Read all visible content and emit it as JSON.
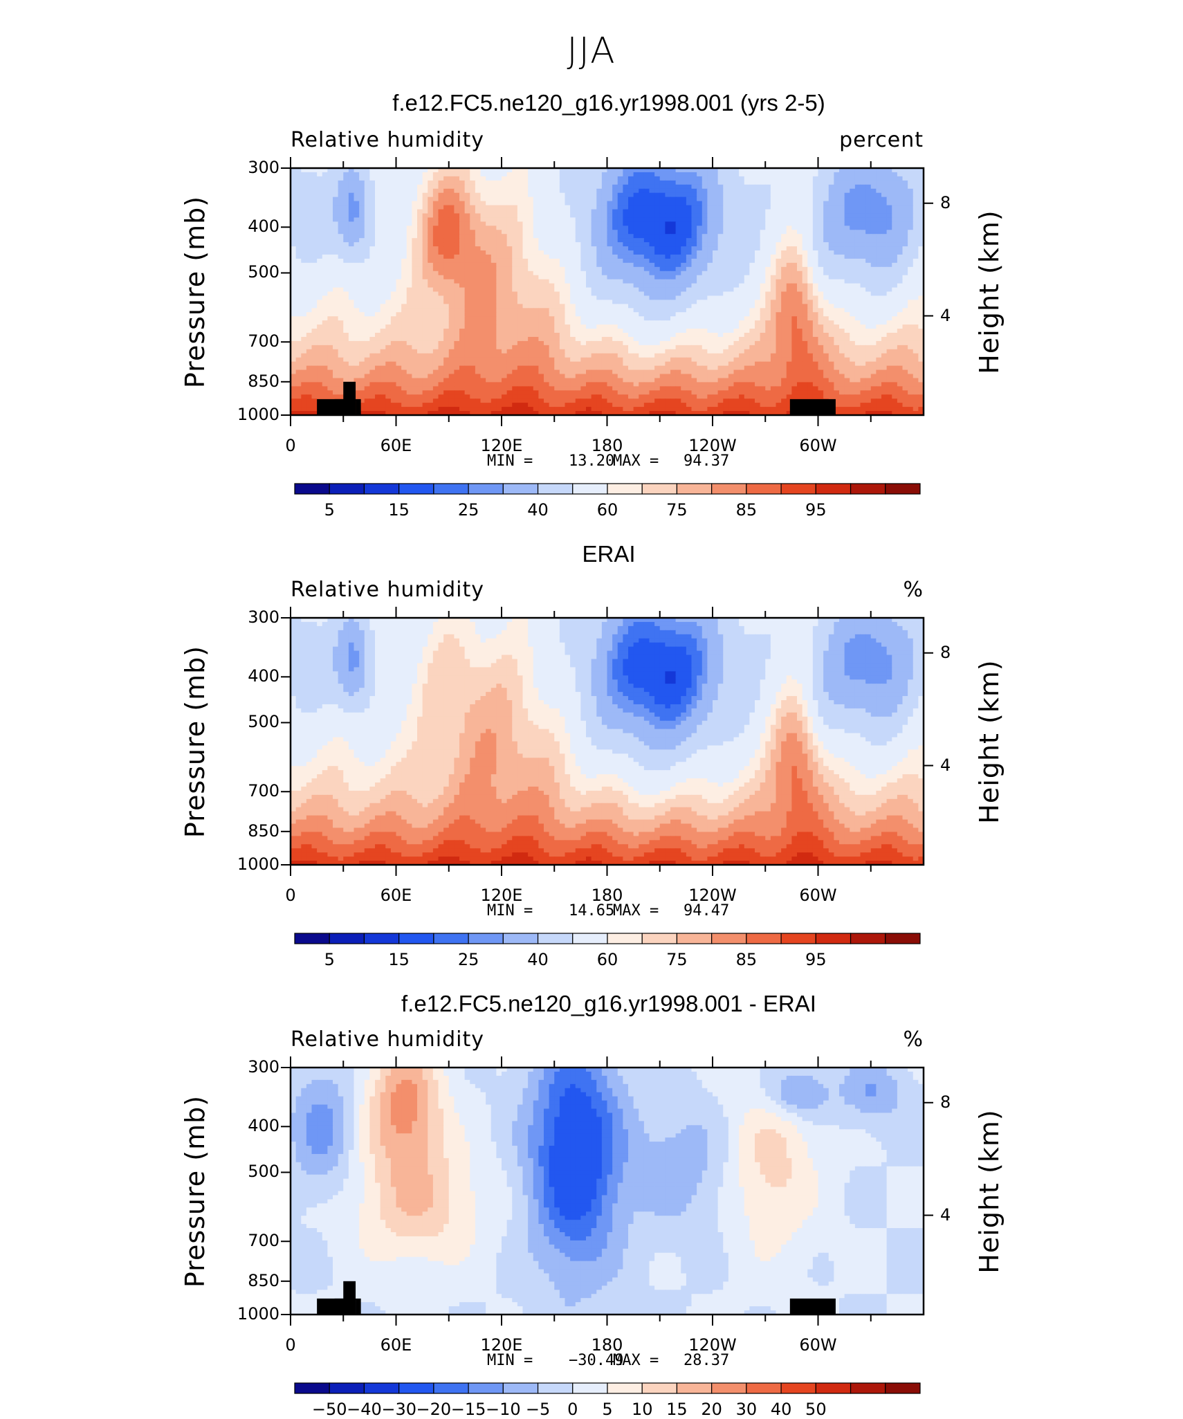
{
  "figure": {
    "title": "JJA"
  },
  "colors": {
    "rh_palette": [
      "#0a0a8c",
      "#0b1fb8",
      "#1438d8",
      "#2257f0",
      "#3f73f2",
      "#6f97f5",
      "#9db9f7",
      "#c6d8fa",
      "#e6eefc",
      "#fdeee3",
      "#fbd4bf",
      "#f8b598",
      "#f38f6c",
      "#ee6a44",
      "#e54520",
      "#d12a10",
      "#ad170a",
      "#8a0d06"
    ],
    "diff_palette": [
      "#0a0a8c",
      "#0b1fb8",
      "#1438d8",
      "#2257f0",
      "#3f73f2",
      "#6f97f5",
      "#9db9f7",
      "#c6d8fa",
      "#e6eefc",
      "#fdeee3",
      "#fbd4bf",
      "#f8b598",
      "#f38f6c",
      "#ee6a44",
      "#e54520",
      "#d12a10",
      "#ad170a",
      "#8a0d06"
    ],
    "topography": "#000000"
  },
  "chart_data": [
    {
      "type": "heatmap",
      "title": "f.e12.FC5.ne120_g16.yr1998.001 (yrs 2-5)",
      "variable": "Relative humidity",
      "units": "percent",
      "ylabel": "Pressure (mb)",
      "ylabel_right": "Height (km)",
      "yticks": [
        "300",
        "400",
        "500",
        "700",
        "850",
        "1000"
      ],
      "yticks_right": [
        "8",
        "4"
      ],
      "xticks": [
        "0",
        "60E",
        "120E",
        "180",
        "120W",
        "60W"
      ],
      "min_label": "MIN =",
      "min": "13.20",
      "max_label": "MAX =",
      "max": "94.37",
      "colorbar_labels": [
        "5",
        "15",
        "25",
        "40",
        "60",
        "75",
        "85",
        "95"
      ],
      "features": [
        {
          "region": "upper troposphere 120W-180",
          "value_range": "10-15"
        },
        {
          "region": "lower troposphere near surface",
          "value_range": "85-90"
        }
      ]
    },
    {
      "type": "heatmap",
      "title": "ERAI",
      "variable": "Relative humidity",
      "units": "%",
      "ylabel": "Pressure (mb)",
      "ylabel_right": "Height (km)",
      "yticks": [
        "300",
        "400",
        "500",
        "700",
        "850",
        "1000"
      ],
      "yticks_right": [
        "8",
        "4"
      ],
      "xticks": [
        "0",
        "60E",
        "120E",
        "180",
        "120W",
        "60W"
      ],
      "min_label": "MIN =",
      "min": "14.65",
      "max_label": "MAX =",
      "max": "94.47",
      "colorbar_labels": [
        "5",
        "15",
        "25",
        "40",
        "60",
        "75",
        "85",
        "95"
      ],
      "features": [
        {
          "region": "upper troposphere 120W-180",
          "value_range": "10-15"
        },
        {
          "region": "lower troposphere near surface",
          "value_range": "85-90"
        }
      ]
    },
    {
      "type": "heatmap",
      "title": "f.e12.FC5.ne120_g16.yr1998.001 - ERAI",
      "variable": "Relative humidity",
      "units": "%",
      "ylabel": "Pressure (mb)",
      "ylabel_right": "Height (km)",
      "yticks": [
        "300",
        "400",
        "500",
        "700",
        "850",
        "1000"
      ],
      "yticks_right": [
        "8",
        "4"
      ],
      "xticks": [
        "0",
        "60E",
        "120E",
        "180",
        "120W",
        "60W"
      ],
      "min_label": "MIN =",
      "min": "−30.49",
      "max_label": "MAX =",
      "max": "28.37",
      "colorbar_labels": [
        "−50",
        "−40",
        "−30",
        "−20",
        "−15",
        "−10",
        "−5",
        "0",
        "5",
        "10",
        "15",
        "20",
        "30",
        "40",
        "50"
      ],
      "features": [
        {
          "region": "150E column",
          "value_range": "-30 to -20"
        },
        {
          "region": "60E mid troposphere",
          "value_range": "15-20"
        }
      ]
    }
  ]
}
